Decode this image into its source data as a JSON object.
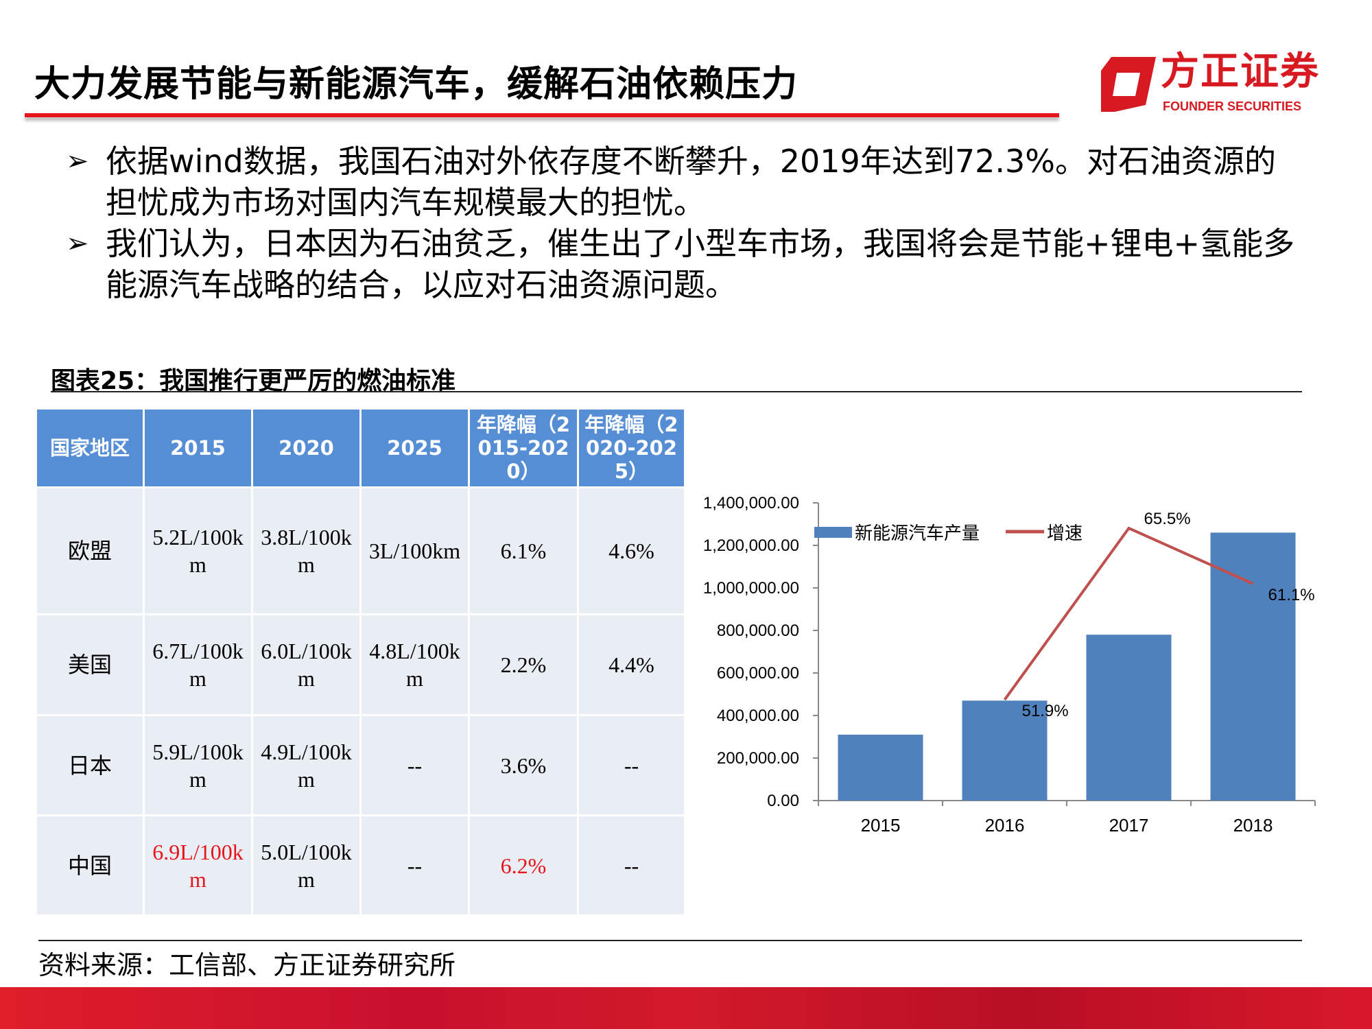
{
  "header": {
    "title": "大力发展节能与新能源汽车，缓解石油依赖压力",
    "logo_cn": "方正证券",
    "logo_en": "FOUNDER SECURITIES",
    "brand_color": "#e8141c"
  },
  "bullets": [
    "依据wind数据，我国石油对外依存度不断攀升，2019年达到72.3%。对石油资源的担忧成为市场对国内汽车规模最大的担忧。",
    "我们认为，日本因为石油贫乏，催生出了小型车市场，我国将会是节能+锂电+氢能多能源汽车战略的结合，以应对石油资源问题。"
  ],
  "figure": {
    "title": "图表25：我国推行更严厉的燃油标准"
  },
  "table": {
    "headers": [
      "国家地区",
      "2015",
      "2020",
      "2025",
      "年降幅（2015-2020）",
      "年降幅（2020-2025）"
    ],
    "rows": [
      [
        "欧盟",
        "5.2L/100km",
        "3.8L/100km",
        "3L/100km",
        "6.1%",
        "4.6%"
      ],
      [
        "美国",
        "6.7L/100km",
        "6.0L/100km",
        "4.8L/100km",
        "2.2%",
        "4.4%"
      ],
      [
        "日本",
        "5.9L/100km",
        "4.9L/100km",
        "--",
        "3.6%",
        "--"
      ],
      [
        "中国",
        "6.9L/100km",
        "5.0L/100km",
        "--",
        "6.2%",
        "--"
      ]
    ],
    "highlight_color": "#e8141c"
  },
  "chart_data": {
    "type": "bar+line",
    "categories": [
      "2015",
      "2016",
      "2017",
      "2018"
    ],
    "series": [
      {
        "name": "新能源汽车产量",
        "type": "bar",
        "values": [
          310000,
          470000,
          780000,
          1260000
        ],
        "color": "#4f81bd"
      },
      {
        "name": "增速",
        "type": "line",
        "x": [
          "2016",
          "2017",
          "2018"
        ],
        "values": [
          51.9,
          65.5,
          61.1
        ],
        "labels": [
          "51.9%",
          "65.5%",
          "61.1%"
        ],
        "color": "#c0504d"
      }
    ],
    "ylim": [
      0,
      1400000
    ],
    "yticks": [
      "0.00",
      "200,000.00",
      "400,000.00",
      "600,000.00",
      "800,000.00",
      "1,000,000.00",
      "1,200,000.00",
      "1,400,000.00"
    ],
    "grid": false,
    "legend": "top"
  },
  "footer": {
    "source": "资料来源：工信部、方正证券研究所"
  }
}
